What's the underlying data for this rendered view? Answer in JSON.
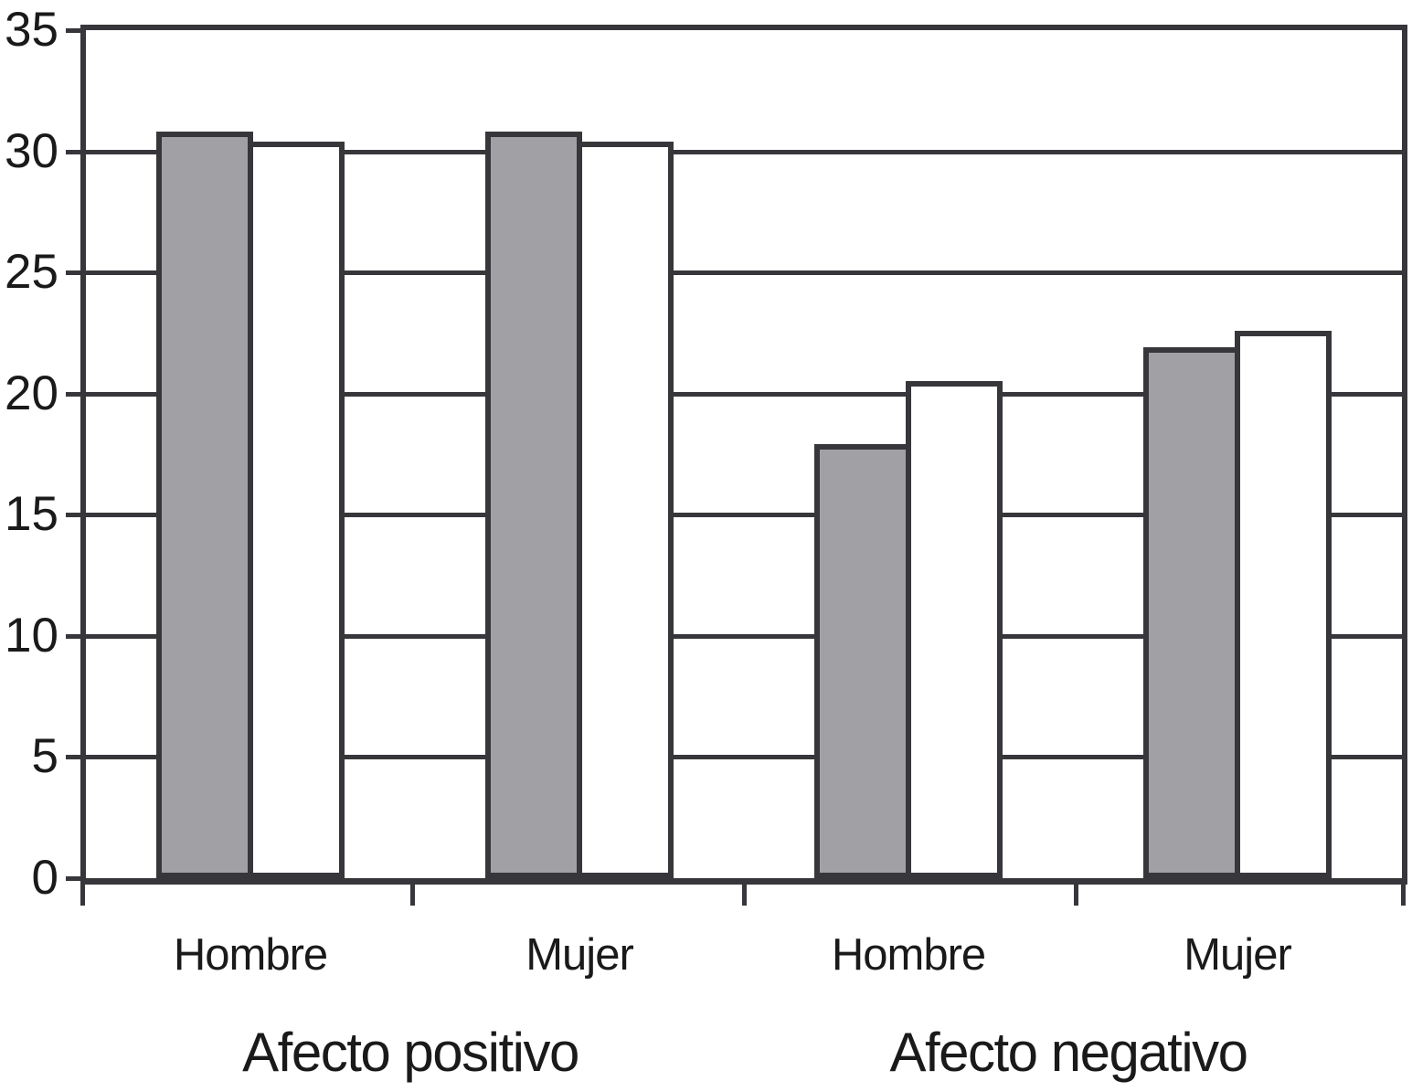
{
  "chart_data": {
    "type": "bar",
    "title": "",
    "xlabel": "",
    "ylabel": "",
    "groups": [
      {
        "label": "Afecto positivo",
        "categories": [
          "Hombre",
          "Mujer"
        ]
      },
      {
        "label": "Afecto negativo",
        "categories": [
          "Hombre",
          "Mujer"
        ]
      }
    ],
    "categories": [
      "Hombre",
      "Mujer",
      "Hombre",
      "Mujer"
    ],
    "series": [
      {
        "name": "barra gris",
        "fill": "#a1a1a5",
        "values": [
          30.8,
          30.8,
          17.9,
          21.9
        ]
      },
      {
        "name": "barra blanca",
        "fill": "#ffffff",
        "values": [
          30.4,
          30.4,
          20.5,
          22.6
        ]
      }
    ],
    "ylim": [
      0,
      35
    ],
    "yticks": [
      0,
      5,
      10,
      15,
      20,
      25,
      30,
      35
    ],
    "gridlines_at": [
      5,
      10,
      15,
      20,
      25,
      30
    ],
    "grid": "horizontal",
    "legend": "none",
    "colors": {
      "line": "#37373b",
      "text": "#1a1a1a",
      "gray_fill": "#a1a1a5",
      "white_fill": "#ffffff",
      "background": "#ffffff"
    }
  }
}
